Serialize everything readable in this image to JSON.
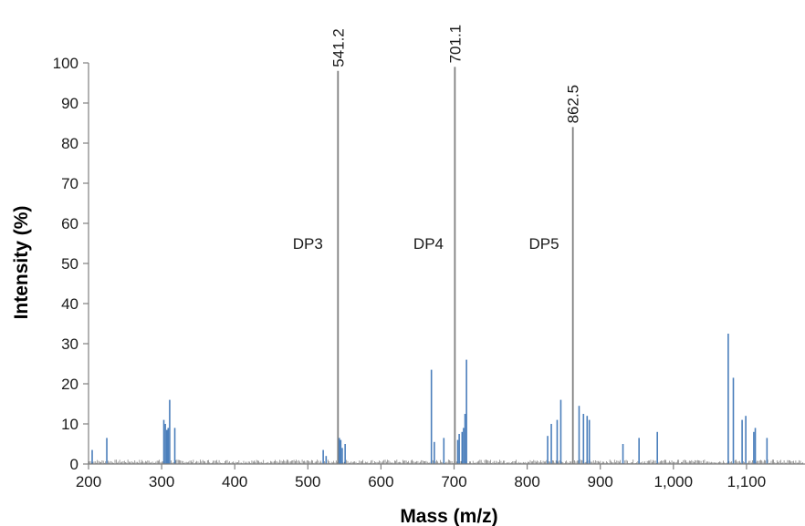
{
  "chart_data": {
    "type": "bar",
    "subtype": "mass-spectrum stick plot",
    "title": "",
    "xlabel": "Mass (m/z)",
    "ylabel": "Intensity (%)",
    "xlim": [
      200,
      1180
    ],
    "ylim": [
      0,
      100
    ],
    "grid": false,
    "legend": "none",
    "xticks": [
      {
        "value": 200,
        "label": "200"
      },
      {
        "value": 300,
        "label": "300"
      },
      {
        "value": 400,
        "label": "400"
      },
      {
        "value": 500,
        "label": "500"
      },
      {
        "value": 600,
        "label": "600"
      },
      {
        "value": 700,
        "label": "700"
      },
      {
        "value": 800,
        "label": "800"
      },
      {
        "value": 900,
        "label": "900"
      },
      {
        "value": 1000,
        "label": "1,000"
      },
      {
        "value": 1100,
        "label": "1,100"
      }
    ],
    "yticks": [
      {
        "value": 0,
        "label": "0"
      },
      {
        "value": 10,
        "label": "10"
      },
      {
        "value": 20,
        "label": "20"
      },
      {
        "value": 30,
        "label": "30"
      },
      {
        "value": 40,
        "label": "40"
      },
      {
        "value": 50,
        "label": "50"
      },
      {
        "value": 60,
        "label": "60"
      },
      {
        "value": 70,
        "label": "70"
      },
      {
        "value": 80,
        "label": "80"
      },
      {
        "value": 90,
        "label": "90"
      },
      {
        "value": 100,
        "label": "100"
      }
    ],
    "peaks": [
      {
        "mz": 205,
        "intensity": 3.5
      },
      {
        "mz": 225,
        "intensity": 6.5
      },
      {
        "mz": 303,
        "intensity": 11
      },
      {
        "mz": 305,
        "intensity": 10
      },
      {
        "mz": 307,
        "intensity": 8.5
      },
      {
        "mz": 309,
        "intensity": 9
      },
      {
        "mz": 311,
        "intensity": 16
      },
      {
        "mz": 318,
        "intensity": 9
      },
      {
        "mz": 521,
        "intensity": 3.5
      },
      {
        "mz": 525,
        "intensity": 2
      },
      {
        "mz": 541.2,
        "intensity": 98,
        "label": "541.2"
      },
      {
        "mz": 543,
        "intensity": 6.5
      },
      {
        "mz": 545,
        "intensity": 6
      },
      {
        "mz": 547,
        "intensity": 4
      },
      {
        "mz": 551,
        "intensity": 5
      },
      {
        "mz": 669,
        "intensity": 23.5
      },
      {
        "mz": 673,
        "intensity": 5.5
      },
      {
        "mz": 686,
        "intensity": 6.5
      },
      {
        "mz": 701.1,
        "intensity": 99,
        "label": "701.1"
      },
      {
        "mz": 705,
        "intensity": 6
      },
      {
        "mz": 707,
        "intensity": 7.5
      },
      {
        "mz": 711,
        "intensity": 8
      },
      {
        "mz": 713,
        "intensity": 9
      },
      {
        "mz": 715,
        "intensity": 12.5
      },
      {
        "mz": 717,
        "intensity": 26
      },
      {
        "mz": 828,
        "intensity": 7
      },
      {
        "mz": 833,
        "intensity": 10
      },
      {
        "mz": 841,
        "intensity": 11
      },
      {
        "mz": 846,
        "intensity": 16
      },
      {
        "mz": 862.5,
        "intensity": 84,
        "label": "862.5"
      },
      {
        "mz": 871,
        "intensity": 14.5
      },
      {
        "mz": 877,
        "intensity": 12.5
      },
      {
        "mz": 882,
        "intensity": 12
      },
      {
        "mz": 885,
        "intensity": 11
      },
      {
        "mz": 931,
        "intensity": 5
      },
      {
        "mz": 953,
        "intensity": 6.5
      },
      {
        "mz": 978,
        "intensity": 8
      },
      {
        "mz": 1075,
        "intensity": 32.5
      },
      {
        "mz": 1082,
        "intensity": 21.5
      },
      {
        "mz": 1094,
        "intensity": 11
      },
      {
        "mz": 1099,
        "intensity": 12
      },
      {
        "mz": 1110,
        "intensity": 8
      },
      {
        "mz": 1112,
        "intensity": 9
      },
      {
        "mz": 1128,
        "intensity": 6.5
      }
    ],
    "annotations": [
      {
        "text": "DP3",
        "x": 500,
        "y": 55
      },
      {
        "text": "DP4",
        "x": 665,
        "y": 55
      },
      {
        "text": "DP5",
        "x": 823,
        "y": 55
      }
    ],
    "colors": {
      "major_peak": "#808080",
      "minor_peak": "#4a7ebb",
      "axis": "#808080",
      "baseline_noise": "#5a5a5a"
    }
  }
}
